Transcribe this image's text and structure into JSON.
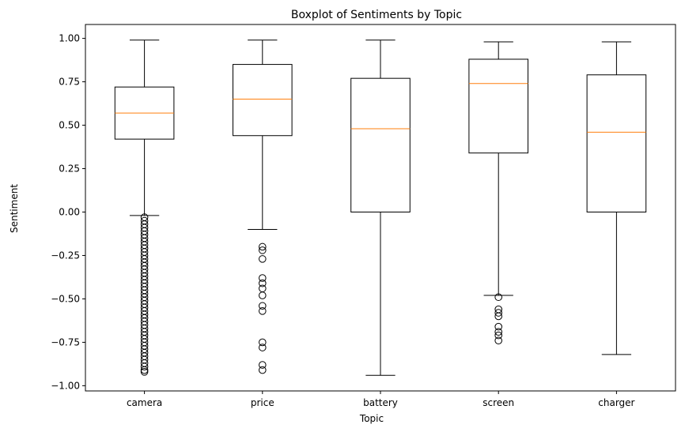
{
  "chart_data": {
    "type": "box",
    "title": "Boxplot of Sentiments by Topic",
    "xlabel": "Topic",
    "ylabel": "Sentiment",
    "ylim": [
      -1.03,
      1.08
    ],
    "yticks": [
      {
        "value": 1.0,
        "label": "1.00"
      },
      {
        "value": 0.75,
        "label": "0.75"
      },
      {
        "value": 0.5,
        "label": "0.50"
      },
      {
        "value": 0.25,
        "label": "0.25"
      },
      {
        "value": 0.0,
        "label": "0.00"
      },
      {
        "value": -0.25,
        "label": "−0.25"
      },
      {
        "value": -0.5,
        "label": "−0.50"
      },
      {
        "value": -0.75,
        "label": "−0.75"
      },
      {
        "value": -1.0,
        "label": "−1.00"
      }
    ],
    "grid": false,
    "colors": {
      "box": "#000000",
      "median": "#ff7f0e",
      "outlier": "#000000"
    },
    "categories": [
      "camera",
      "price",
      "battery",
      "screen",
      "charger"
    ],
    "boxes": [
      {
        "name": "camera",
        "whisker_low": -0.02,
        "q1": 0.42,
        "median": 0.57,
        "q3": 0.72,
        "whisker_high": 0.99,
        "outliers": [
          -0.03,
          -0.05,
          -0.07,
          -0.09,
          -0.11,
          -0.13,
          -0.15,
          -0.17,
          -0.19,
          -0.21,
          -0.23,
          -0.25,
          -0.27,
          -0.29,
          -0.31,
          -0.33,
          -0.35,
          -0.37,
          -0.39,
          -0.41,
          -0.43,
          -0.45,
          -0.47,
          -0.49,
          -0.51,
          -0.53,
          -0.55,
          -0.57,
          -0.59,
          -0.61,
          -0.63,
          -0.65,
          -0.67,
          -0.69,
          -0.71,
          -0.73,
          -0.75,
          -0.77,
          -0.79,
          -0.81,
          -0.83,
          -0.85,
          -0.87,
          -0.89,
          -0.91,
          -0.92
        ]
      },
      {
        "name": "price",
        "whisker_low": -0.1,
        "q1": 0.44,
        "median": 0.65,
        "q3": 0.85,
        "whisker_high": 0.99,
        "outliers": [
          -0.2,
          -0.22,
          -0.27,
          -0.38,
          -0.41,
          -0.44,
          -0.48,
          -0.54,
          -0.57,
          -0.75,
          -0.78,
          -0.88,
          -0.91
        ]
      },
      {
        "name": "battery",
        "whisker_low": -0.94,
        "q1": 0.0,
        "median": 0.48,
        "q3": 0.77,
        "whisker_high": 0.99,
        "outliers": []
      },
      {
        "name": "screen",
        "whisker_low": -0.48,
        "q1": 0.34,
        "median": 0.74,
        "q3": 0.88,
        "whisker_high": 0.98,
        "outliers": [
          -0.49,
          -0.56,
          -0.58,
          -0.6,
          -0.66,
          -0.69,
          -0.71,
          -0.74
        ]
      },
      {
        "name": "charger",
        "whisker_low": -0.82,
        "q1": 0.0,
        "median": 0.46,
        "q3": 0.79,
        "whisker_high": 0.98,
        "outliers": []
      }
    ]
  }
}
